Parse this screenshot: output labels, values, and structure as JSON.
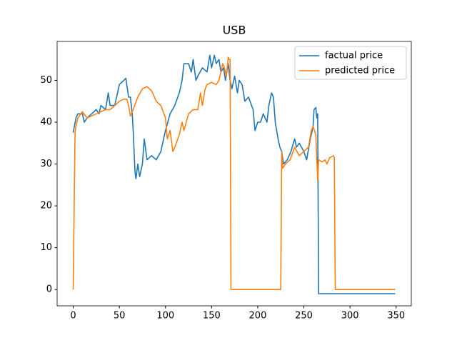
{
  "chart_data": {
    "type": "line",
    "title": "USB",
    "series": [
      {
        "name": "factual price",
        "color": "#1f77b4",
        "x": [
          0,
          3,
          5,
          10,
          12,
          15,
          20,
          25,
          28,
          30,
          35,
          38,
          40,
          45,
          48,
          50,
          55,
          57,
          60,
          62,
          64,
          65,
          66,
          67,
          68,
          70,
          72,
          75,
          77,
          80,
          85,
          90,
          95,
          100,
          105,
          110,
          115,
          118,
          120,
          125,
          128,
          130,
          133,
          135,
          140,
          145,
          148,
          150,
          153,
          155,
          158,
          160,
          163,
          165,
          168,
          170,
          172,
          175,
          178,
          180,
          183,
          186,
          190,
          195,
          197,
          200,
          203,
          206,
          210,
          212,
          215,
          217,
          219,
          222,
          224,
          226,
          228,
          232,
          236,
          240,
          242,
          245,
          250,
          253,
          257,
          260,
          261,
          263,
          264,
          265,
          266,
          349
        ],
        "values": [
          37.5,
          41,
          42,
          42,
          40,
          41,
          42,
          43,
          42,
          44,
          43,
          47,
          44,
          44,
          47,
          49,
          50,
          50.5,
          46,
          46,
          42,
          38,
          33,
          28,
          26.5,
          30,
          27,
          30,
          36,
          31,
          32,
          31,
          33,
          38,
          42,
          44,
          47,
          50,
          54,
          54,
          52,
          55,
          50,
          51,
          53,
          52,
          56,
          53,
          56,
          54,
          55,
          52,
          53,
          50,
          54,
          50,
          48,
          51,
          47,
          50,
          49,
          45,
          46,
          43,
          38,
          40,
          40,
          42,
          40,
          44,
          47,
          46,
          40,
          36,
          34,
          33,
          30,
          31,
          33,
          36,
          34,
          35,
          33,
          31,
          36,
          39,
          43,
          43.5,
          41,
          42,
          -1,
          -1
        ]
      },
      {
        "name": "predicted price",
        "color": "#ff7f0e",
        "x": [
          0,
          2,
          3,
          5,
          10,
          15,
          20,
          25,
          30,
          35,
          40,
          45,
          50,
          55,
          58,
          60,
          62,
          65,
          70,
          75,
          80,
          85,
          90,
          95,
          100,
          102,
          105,
          108,
          110,
          115,
          118,
          120,
          125,
          130,
          135,
          138,
          140,
          143,
          145,
          150,
          155,
          158,
          160,
          162,
          164,
          166,
          168,
          169,
          170,
          171,
          225,
          226,
          227,
          230,
          235,
          240,
          245,
          250,
          255,
          258,
          260,
          263,
          265,
          266,
          270,
          273,
          275,
          278,
          282,
          283,
          284,
          349
        ],
        "values": [
          0,
          37.5,
          39,
          41,
          42.5,
          41,
          41.5,
          42,
          42.5,
          43,
          43,
          44,
          45,
          45.5,
          45.5,
          44,
          41.5,
          43,
          46,
          48,
          48.5,
          47.5,
          45,
          44,
          41,
          36,
          38,
          33,
          34,
          37,
          40,
          38,
          42,
          43,
          43,
          47,
          44,
          48,
          49,
          49.5,
          49,
          50,
          52,
          54,
          53,
          51,
          55.5,
          55,
          55,
          0,
          0,
          33,
          29,
          30,
          31,
          34,
          32,
          33,
          34,
          38,
          39,
          37,
          26,
          31,
          30.5,
          31,
          30,
          31.5,
          32,
          31.5,
          0,
          0
        ]
      }
    ],
    "xlim": [
      -17.45,
      366.45
    ],
    "xticks": [
      0,
      50,
      100,
      150,
      200,
      250,
      300,
      350
    ],
    "ylim": [
      -3.9,
      59.3
    ],
    "yticks": [
      0,
      10,
      20,
      30,
      40,
      50
    ],
    "legend": "upper right"
  }
}
